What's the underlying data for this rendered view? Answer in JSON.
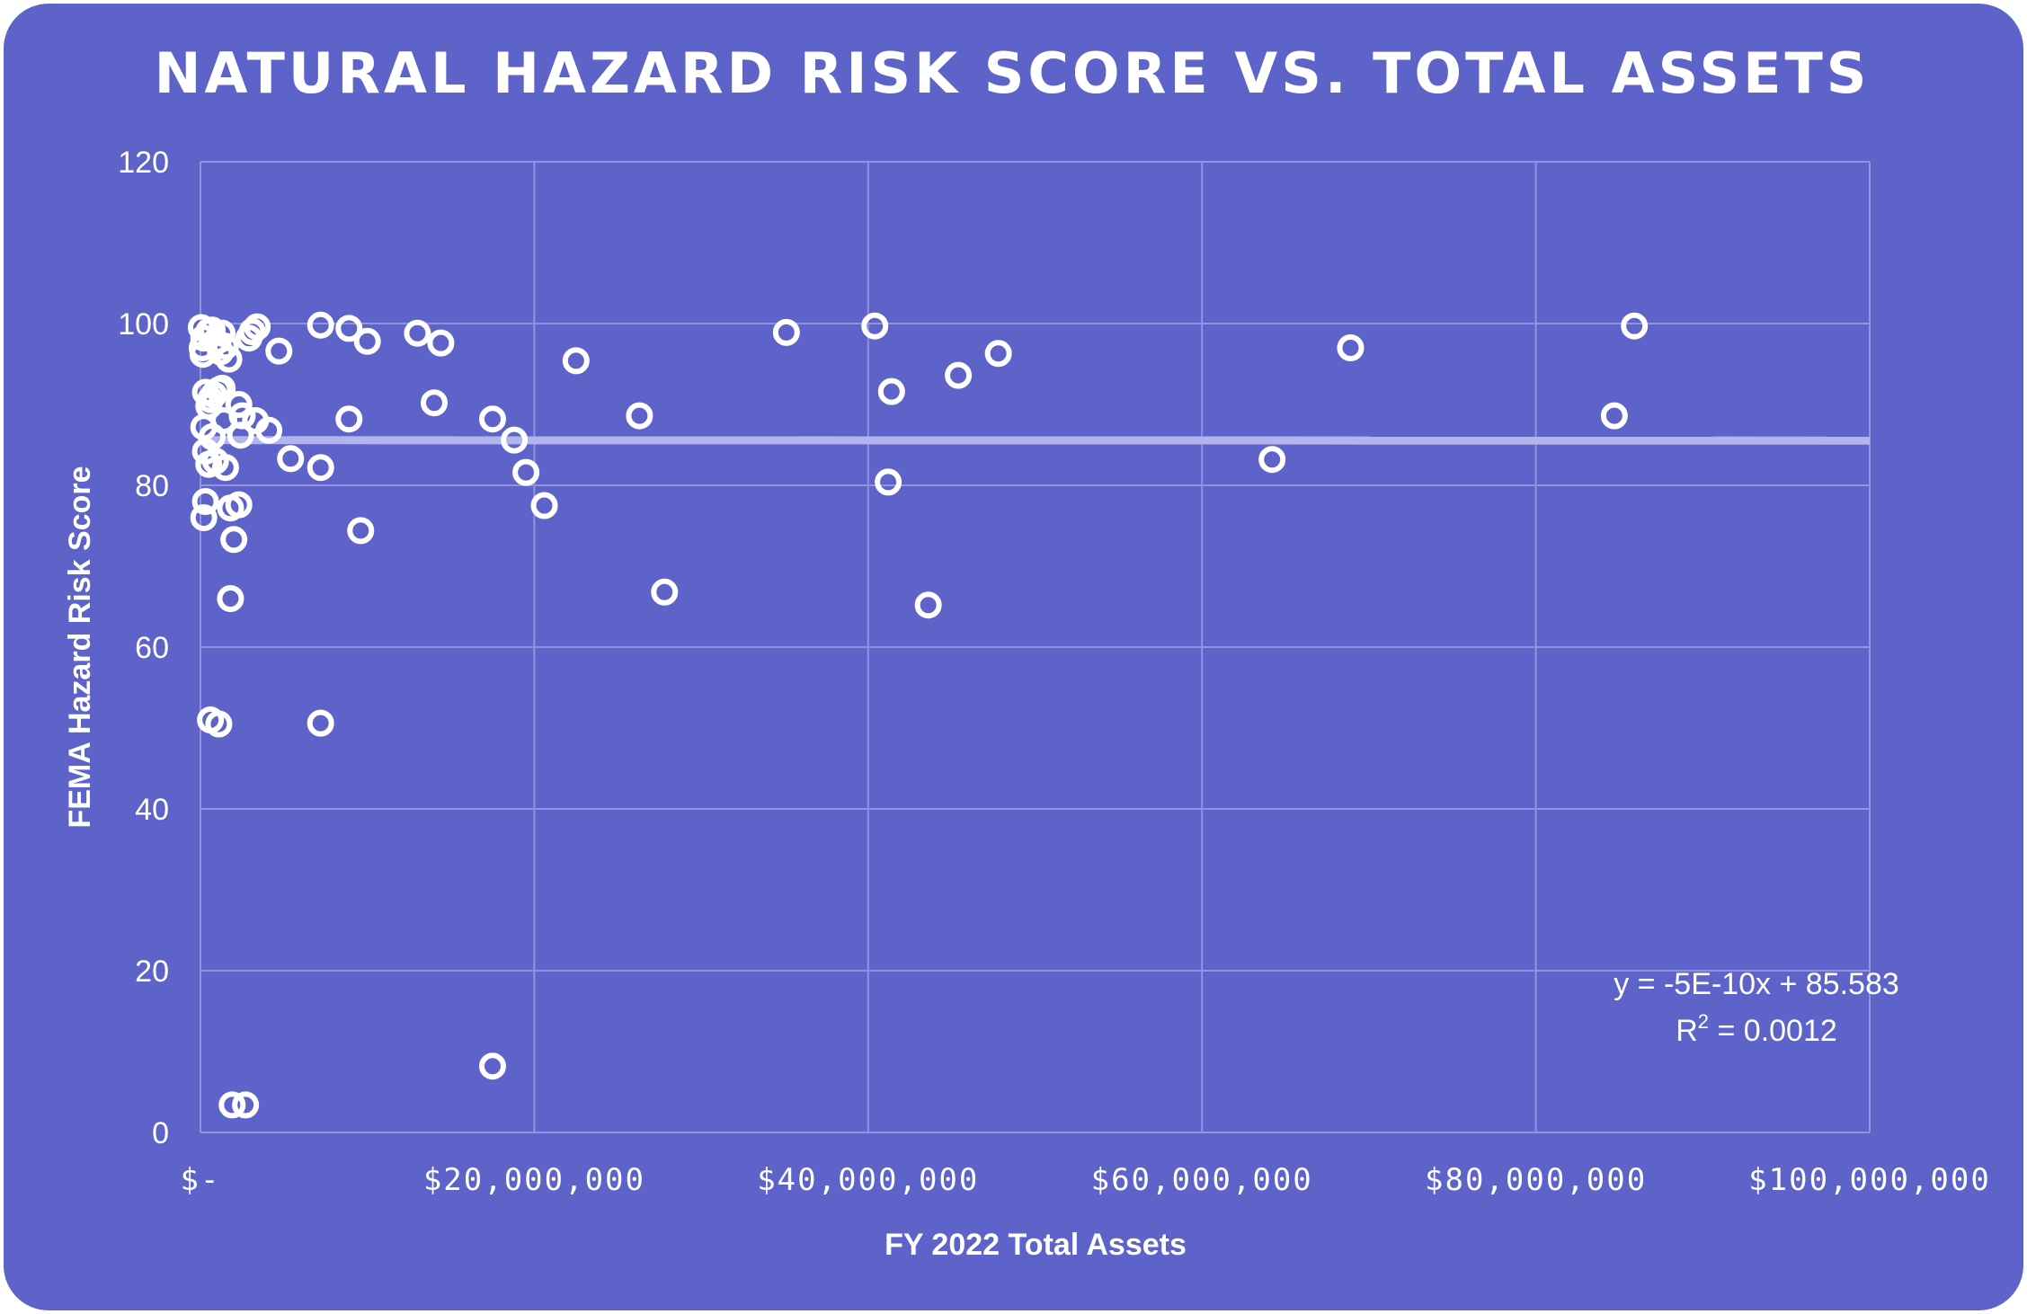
{
  "chart_data": {
    "type": "scatter",
    "title": "NATURAL HAZARD RISK SCORE VS. TOTAL ASSETS",
    "xlabel": "FY 2022 Total Assets",
    "ylabel": "FEMA Hazard Risk Score",
    "xlim": [
      0,
      100000000
    ],
    "ylim": [
      0,
      120
    ],
    "x_ticks": [
      0,
      20000000,
      40000000,
      60000000,
      80000000,
      100000000
    ],
    "x_tick_labels": [
      "$-",
      "$20,000,000",
      "$40,000,000",
      "$60,000,000",
      "$80,000,000",
      "$100,000,000"
    ],
    "y_ticks": [
      0,
      20,
      40,
      60,
      80,
      100,
      120
    ],
    "y_tick_labels": [
      "0",
      "20",
      "40",
      "60",
      "80",
      "100",
      "120"
    ],
    "grid": true,
    "colors": {
      "background": "#5e63c9",
      "marker": "#ffffff",
      "trendline": "#b2b4ec",
      "grid": "#8f93e0",
      "text": "#ffffff"
    },
    "trendline": {
      "type": "linear",
      "slope": -5e-10,
      "intercept": 85.583,
      "equation": "y = -5E-10x + 85.583",
      "r2_prefix": "R",
      "r2_exp": "2",
      "r2_value": " = 0.0012"
    },
    "points": [
      [
        50000,
        99.5
      ],
      [
        200000,
        98.2
      ],
      [
        100000,
        97.0
      ],
      [
        150000,
        96.2
      ],
      [
        500000,
        99.0
      ],
      [
        700000,
        99.2
      ],
      [
        900000,
        97.8
      ],
      [
        1300000,
        98.8
      ],
      [
        1500000,
        97.2
      ],
      [
        1200000,
        96.5
      ],
      [
        1700000,
        95.6
      ],
      [
        3100000,
        99.0
      ],
      [
        3400000,
        99.6
      ],
      [
        2900000,
        98.2
      ],
      [
        4700000,
        96.6
      ],
      [
        300000,
        91.5
      ],
      [
        500000,
        89.8
      ],
      [
        800000,
        91.2
      ],
      [
        600000,
        90.6
      ],
      [
        1100000,
        91.8
      ],
      [
        1400000,
        88.0
      ],
      [
        1300000,
        92.0
      ],
      [
        2300000,
        90.0
      ],
      [
        2500000,
        88.6
      ],
      [
        3300000,
        88.0
      ],
      [
        4100000,
        86.8
      ],
      [
        2400000,
        86.2
      ],
      [
        200000,
        87.2
      ],
      [
        700000,
        86.0
      ],
      [
        300000,
        84.2
      ],
      [
        500000,
        82.6
      ],
      [
        900000,
        83.0
      ],
      [
        1500000,
        82.2
      ],
      [
        300000,
        78.0
      ],
      [
        200000,
        76.0
      ],
      [
        1800000,
        77.2
      ],
      [
        2300000,
        77.6
      ],
      [
        2000000,
        73.3
      ],
      [
        1800000,
        66.0
      ],
      [
        600000,
        51.0
      ],
      [
        1100000,
        50.5
      ],
      [
        1900000,
        3.4
      ],
      [
        2700000,
        3.4
      ],
      [
        7200000,
        99.8
      ],
      [
        8900000,
        99.4
      ],
      [
        10000000,
        97.8
      ],
      [
        5400000,
        83.3
      ],
      [
        7200000,
        82.2
      ],
      [
        8900000,
        88.2
      ],
      [
        9600000,
        74.4
      ],
      [
        7200000,
        50.6
      ],
      [
        13000000,
        98.8
      ],
      [
        14400000,
        97.6
      ],
      [
        14000000,
        90.2
      ],
      [
        17500000,
        88.2
      ],
      [
        18800000,
        85.6
      ],
      [
        19500000,
        81.6
      ],
      [
        20600000,
        77.5
      ],
      [
        17500000,
        8.2
      ],
      [
        22500000,
        95.4
      ],
      [
        26300000,
        88.6
      ],
      [
        27800000,
        66.8
      ],
      [
        35100000,
        98.9
      ],
      [
        40400000,
        99.7
      ],
      [
        41400000,
        91.6
      ],
      [
        41200000,
        80.4
      ],
      [
        43600000,
        65.2
      ],
      [
        45400000,
        93.6
      ],
      [
        47800000,
        96.3
      ],
      [
        64200000,
        83.2
      ],
      [
        68900000,
        97.0
      ],
      [
        84700000,
        88.6
      ],
      [
        85900000,
        99.7
      ]
    ]
  }
}
